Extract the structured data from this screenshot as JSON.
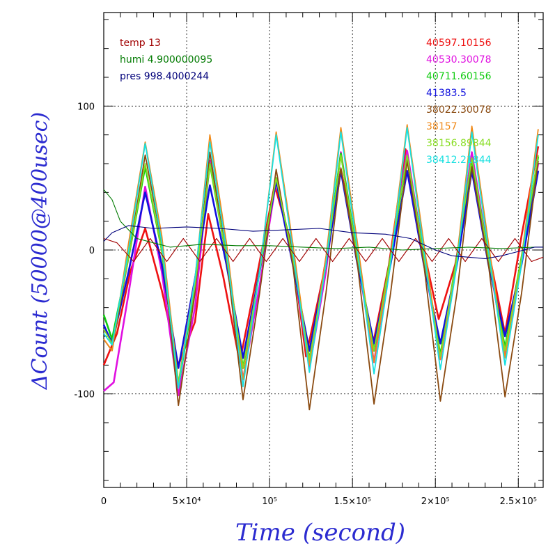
{
  "chart_data": {
    "type": "line",
    "xlabel": "Time (second)",
    "ylabel": "ΔCount (50000@400usec)",
    "xlim": [
      0,
      265000
    ],
    "ylim": [
      -165,
      165
    ],
    "grid": true,
    "x_ticks": [
      {
        "value": 0,
        "label": "0"
      },
      {
        "value": 50000,
        "label": "5×10⁴"
      },
      {
        "value": 100000,
        "label": "10⁵"
      },
      {
        "value": 150000,
        "label": "1.5×10⁵"
      },
      {
        "value": 200000,
        "label": "2×10⁵"
      },
      {
        "value": 250000,
        "label": "2.5×10⁵"
      }
    ],
    "y_ticks": [
      {
        "value": -100,
        "label": "-100"
      },
      {
        "value": 0,
        "label": "0"
      },
      {
        "value": 100,
        "label": "100"
      }
    ],
    "env_legend": [
      {
        "text": "temp 13",
        "color": "#a00000"
      },
      {
        "text": "humi 4.900000095",
        "color": "#007a00"
      },
      {
        "text": "pres 998.4000244",
        "color": "#00007a"
      }
    ],
    "series": [
      {
        "name": "40597.10156",
        "color": "#ee1111",
        "x": [
          0,
          8000,
          16000,
          25000,
          35000,
          45000,
          55000,
          63000,
          72000,
          82000,
          92000,
          103000,
          113000,
          122000,
          132000,
          143000,
          152000,
          162000,
          172000,
          182000,
          192000,
          202000,
          212000,
          222000,
          232000,
          242000,
          252000,
          262000
        ],
        "y": [
          -80,
          -58,
          -15,
          15,
          -28,
          -80,
          -50,
          25,
          -18,
          -78,
          -20,
          45,
          5,
          -74,
          -20,
          56,
          5,
          -68,
          -10,
          70,
          5,
          -48,
          -10,
          55,
          0,
          -58,
          10,
          72
        ]
      },
      {
        "name": "40530.30078",
        "color": "#e010e0",
        "x": [
          0,
          6000,
          15000,
          25000,
          35000,
          45000,
          55000,
          64000,
          74000,
          84000,
          94000,
          104000,
          114000,
          124000,
          134000,
          143000,
          153000,
          163000,
          173000,
          183000,
          193000,
          203000,
          213000,
          222000,
          232000,
          242000,
          252000,
          262000
        ],
        "y": [
          -98,
          -92,
          -30,
          44,
          -15,
          -101,
          -40,
          62,
          -5,
          -90,
          -25,
          48,
          -5,
          -82,
          -15,
          68,
          -5,
          -78,
          -5,
          69,
          -5,
          -76,
          -5,
          68,
          -5,
          -72,
          -5,
          60
        ]
      },
      {
        "name": "40711.60156",
        "color": "#11cc11",
        "x": [
          0,
          5000,
          15000,
          25000,
          35000,
          45000,
          55000,
          64000,
          74000,
          84000,
          94000,
          104000,
          114000,
          124000,
          134000,
          143000,
          153000,
          163000,
          173000,
          183000,
          193000,
          203000,
          213000,
          222000,
          232000,
          242000,
          252000,
          262000
        ],
        "y": [
          -45,
          -62,
          -5,
          58,
          0,
          -95,
          -25,
          60,
          -5,
          -82,
          -15,
          50,
          -5,
          -76,
          -10,
          67,
          -5,
          -70,
          -5,
          65,
          -5,
          -73,
          -5,
          63,
          -5,
          -68,
          -5,
          65
        ]
      },
      {
        "name": "41383.5",
        "color": "#1111dd",
        "x": [
          0,
          5000,
          15000,
          25000,
          35000,
          45000,
          55000,
          64000,
          74000,
          84000,
          94000,
          104000,
          114000,
          124000,
          134000,
          143000,
          153000,
          163000,
          173000,
          183000,
          193000,
          203000,
          213000,
          222000,
          232000,
          242000,
          252000,
          262000
        ],
        "y": [
          -52,
          -65,
          -15,
          40,
          -10,
          -82,
          -20,
          45,
          -10,
          -75,
          -15,
          48,
          -10,
          -70,
          -10,
          55,
          -10,
          -65,
          -10,
          55,
          -10,
          -65,
          -10,
          55,
          -10,
          -60,
          -10,
          55
        ]
      },
      {
        "name": "38022.30078",
        "color": "#8a4a10",
        "x": [
          0,
          5000,
          15000,
          25000,
          35000,
          45000,
          55000,
          64000,
          74000,
          84000,
          94000,
          104000,
          114000,
          124000,
          134000,
          143000,
          153000,
          163000,
          173000,
          183000,
          193000,
          203000,
          213000,
          222000,
          232000,
          242000,
          252000,
          262000
        ],
        "y": [
          -62,
          -70,
          -5,
          66,
          5,
          -108,
          -30,
          68,
          -5,
          -104,
          -30,
          56,
          -10,
          -111,
          -30,
          57,
          -10,
          -107,
          -30,
          62,
          -10,
          -105,
          -30,
          58,
          -10,
          -102,
          -30,
          62
        ]
      },
      {
        "name": "38157",
        "color": "#f08a1a",
        "x": [
          0,
          5000,
          15000,
          25000,
          35000,
          45000,
          55000,
          64000,
          74000,
          84000,
          94000,
          104000,
          114000,
          124000,
          134000,
          143000,
          153000,
          163000,
          173000,
          183000,
          193000,
          203000,
          213000,
          222000,
          232000,
          242000,
          252000,
          262000
        ],
        "y": [
          -62,
          -70,
          5,
          75,
          10,
          -92,
          -20,
          80,
          5,
          -90,
          -15,
          82,
          5,
          -80,
          -5,
          85,
          5,
          -78,
          -5,
          87,
          5,
          -76,
          -5,
          86,
          5,
          -75,
          -5,
          84
        ]
      },
      {
        "name": "38156.89844",
        "color": "#88dd22",
        "x": [
          0,
          5000,
          15000,
          25000,
          35000,
          45000,
          55000,
          64000,
          74000,
          84000,
          94000,
          104000,
          114000,
          124000,
          134000,
          143000,
          153000,
          163000,
          173000,
          183000,
          193000,
          203000,
          213000,
          222000,
          232000,
          242000,
          252000,
          262000
        ],
        "y": [
          -55,
          -65,
          -5,
          60,
          0,
          -92,
          -25,
          60,
          -5,
          -82,
          -15,
          50,
          -5,
          -76,
          -10,
          66,
          -5,
          -70,
          -5,
          66,
          -5,
          -74,
          -5,
          64,
          -5,
          -70,
          -5,
          66
        ]
      },
      {
        "name": "38412.21844",
        "color": "#18e0e0",
        "x": [
          0,
          5000,
          15000,
          25000,
          35000,
          45000,
          55000,
          64000,
          74000,
          84000,
          94000,
          104000,
          114000,
          124000,
          134000,
          143000,
          153000,
          163000,
          173000,
          183000,
          193000,
          203000,
          213000,
          222000,
          232000,
          242000,
          252000,
          262000
        ],
        "y": [
          -58,
          -66,
          0,
          74,
          5,
          -96,
          -20,
          75,
          0,
          -95,
          -15,
          80,
          0,
          -85,
          -10,
          82,
          0,
          -86,
          -10,
          85,
          0,
          -83,
          -10,
          82,
          0,
          -80,
          -10,
          80
        ]
      },
      {
        "name": "temp 13",
        "color": "#a00000",
        "x": [
          0,
          8000,
          18000,
          28000,
          38000,
          48000,
          58000,
          68000,
          78000,
          88000,
          98000,
          108000,
          118000,
          128000,
          138000,
          148000,
          158000,
          168000,
          178000,
          188000,
          198000,
          208000,
          218000,
          228000,
          238000,
          248000,
          258000,
          265000
        ],
        "y": [
          8,
          5,
          -8,
          8,
          -8,
          8,
          -8,
          8,
          -8,
          8,
          -8,
          8,
          -8,
          8,
          -8,
          8,
          -8,
          8,
          -8,
          8,
          -8,
          8,
          -8,
          8,
          -8,
          8,
          -8,
          -5
        ]
      },
      {
        "name": "humi 4.900000095",
        "color": "#007a00",
        "x": [
          0,
          5000,
          10000,
          20000,
          30000,
          40000,
          60000,
          80000,
          100000,
          120000,
          140000,
          160000,
          180000,
          200000,
          220000,
          240000,
          260000,
          265000
        ],
        "y": [
          42,
          35,
          20,
          8,
          5,
          2,
          4,
          3,
          3,
          2,
          1,
          2,
          0,
          1,
          2,
          1,
          2,
          2
        ]
      },
      {
        "name": "pres 998.4000244",
        "color": "#00007a",
        "x": [
          0,
          5000,
          15000,
          30000,
          50000,
          70000,
          90000,
          110000,
          130000,
          150000,
          170000,
          185000,
          200000,
          210000,
          220000,
          230000,
          240000,
          250000,
          260000,
          265000
        ],
        "y": [
          6,
          12,
          17,
          15,
          16,
          15,
          13,
          14,
          15,
          12,
          11,
          8,
          0,
          -4,
          -5,
          -6,
          -4,
          -1,
          2,
          2
        ]
      }
    ]
  }
}
